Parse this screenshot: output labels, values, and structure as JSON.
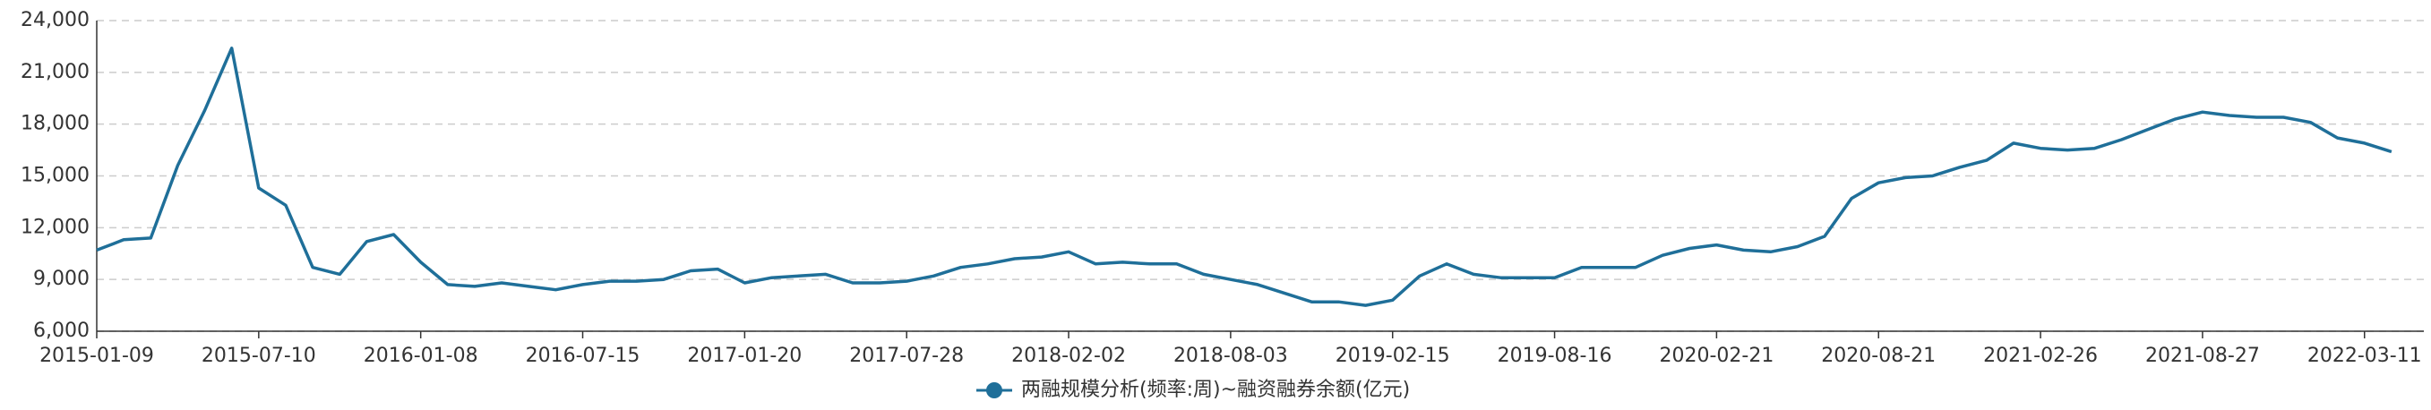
{
  "chart_data": {
    "type": "line",
    "categories": [
      "2015-01-09",
      null,
      null,
      null,
      null,
      null,
      "2015-07-10",
      null,
      null,
      null,
      null,
      null,
      "2016-01-08",
      null,
      null,
      null,
      null,
      null,
      "2016-07-15",
      null,
      null,
      null,
      null,
      null,
      "2017-01-20",
      null,
      null,
      null,
      null,
      null,
      "2017-07-28",
      null,
      null,
      null,
      null,
      null,
      "2018-02-02",
      null,
      null,
      null,
      null,
      null,
      "2018-08-03",
      null,
      null,
      null,
      null,
      null,
      "2019-02-15",
      null,
      null,
      null,
      null,
      null,
      "2019-08-16",
      null,
      null,
      null,
      null,
      null,
      "2020-02-21",
      null,
      null,
      null,
      null,
      null,
      "2020-08-21",
      null,
      null,
      null,
      null,
      null,
      "2021-02-26",
      null,
      null,
      null,
      null,
      null,
      "2021-08-27",
      null,
      null,
      null,
      null,
      null,
      "2022-03-11",
      null
    ],
    "series": [
      {
        "name": "两融规模分析(频率:周)~融资融券余额(亿元)",
        "color": "#1f6f99",
        "values": [
          10700,
          11300,
          11400,
          15600,
          18800,
          22400,
          14300,
          13300,
          9700,
          9300,
          11200,
          11600,
          10000,
          8700,
          8600,
          8800,
          8600,
          8400,
          8700,
          8900,
          8900,
          9000,
          9500,
          9600,
          8800,
          9100,
          9200,
          9300,
          8800,
          8800,
          8900,
          9200,
          9700,
          9900,
          10200,
          10300,
          10600,
          9900,
          10000,
          9900,
          9900,
          9300,
          9000,
          8700,
          8200,
          7700,
          7700,
          7500,
          7800,
          9200,
          9900,
          9300,
          9100,
          9100,
          9100,
          9700,
          9700,
          9700,
          10400,
          10800,
          11000,
          10700,
          10600,
          10900,
          11500,
          13700,
          14600,
          14900,
          15000,
          15500,
          15900,
          16900,
          16600,
          16500,
          16600,
          17100,
          17700,
          18300,
          18700,
          18500,
          18400,
          18400,
          18100,
          17200,
          16900,
          16400
        ]
      }
    ],
    "ylim": [
      6000,
      24000
    ],
    "yticks": [
      {
        "value": 6000,
        "label": "6,000"
      },
      {
        "value": 9000,
        "label": "9,000"
      },
      {
        "value": 12000,
        "label": "12,000"
      },
      {
        "value": 15000,
        "label": "15,000"
      },
      {
        "value": 18000,
        "label": "18,000"
      },
      {
        "value": 21000,
        "label": "21,000"
      },
      {
        "value": 24000,
        "label": "24,000"
      }
    ],
    "grid": true
  }
}
